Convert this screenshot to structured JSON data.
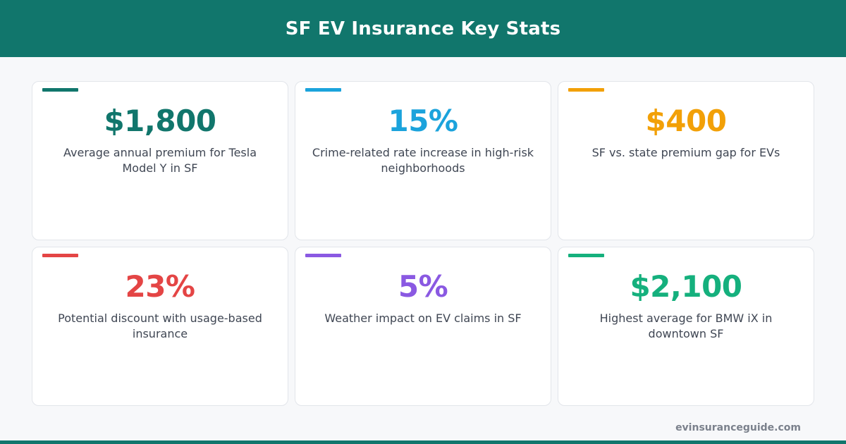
{
  "header": {
    "title": "SF EV Insurance Key Stats"
  },
  "stats": [
    {
      "value": "$1,800",
      "label": "Average annual premium for Tesla Model Y in SF",
      "color": "#11766c"
    },
    {
      "value": "15%",
      "label": "Crime-related rate increase in high-risk neighborhoods",
      "color": "#1ba3dc"
    },
    {
      "value": "$400",
      "label": "SF vs. state premium gap for EVs",
      "color": "#f2a007"
    },
    {
      "value": "23%",
      "label": "Potential discount with usage-based insurance",
      "color": "#e44545"
    },
    {
      "value": "5%",
      "label": "Weather impact on EV claims in SF",
      "color": "#8a59e2"
    },
    {
      "value": "$2,100",
      "label": "Highest average for BMW iX in downtown SF",
      "color": "#15b07d"
    }
  ],
  "footer": {
    "site": "evinsuranceguide.com"
  },
  "colors": {
    "brand": "#11766c",
    "background": "#f7f8fa"
  }
}
